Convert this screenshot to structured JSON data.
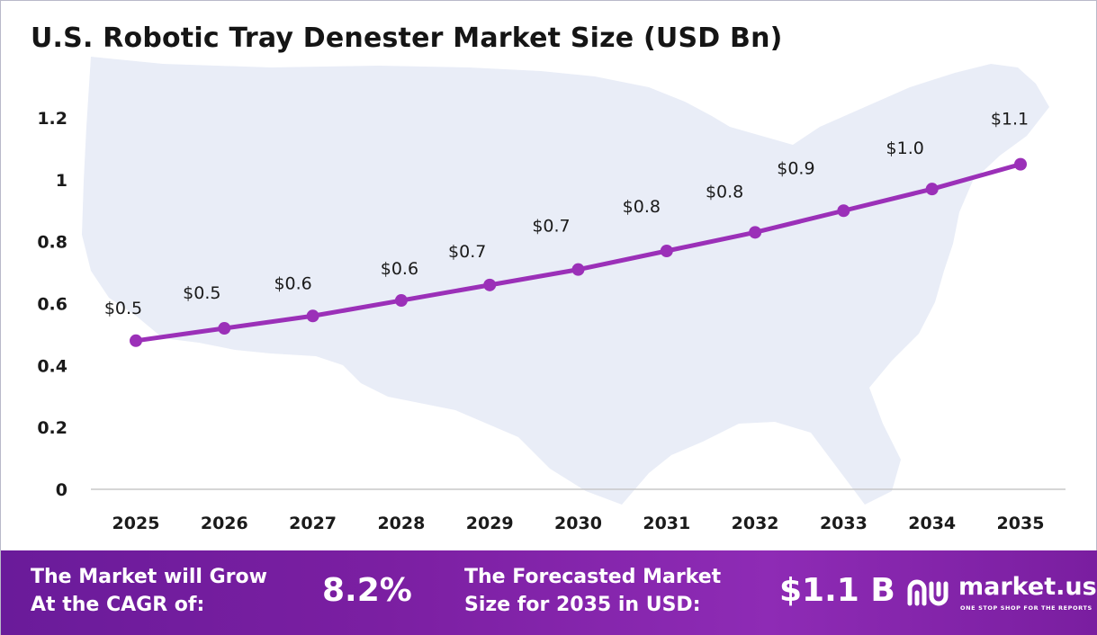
{
  "title": "U.S. Robotic Tray Denester Market Size (USD Bn)",
  "colors": {
    "line": "#9b30b8",
    "marker": "#9b30b8",
    "map": "#e9edf7",
    "axis": "#c8c8c8",
    "footer": "#7b1fa2"
  },
  "chart_data": {
    "type": "line",
    "title": "U.S. Robotic Tray Denester Market Size (USD Bn)",
    "xlabel": "",
    "ylabel": "",
    "categories": [
      "2025",
      "2026",
      "2027",
      "2028",
      "2029",
      "2030",
      "2031",
      "2032",
      "2033",
      "2034",
      "2035"
    ],
    "values": [
      0.48,
      0.52,
      0.56,
      0.61,
      0.66,
      0.71,
      0.77,
      0.83,
      0.9,
      0.97,
      1.05
    ],
    "data_labels": [
      "$0.5",
      "$0.5",
      "$0.6",
      "$0.6",
      "$0.7",
      "$0.7",
      "$0.8",
      "$0.8",
      "$0.9",
      "$1.0",
      "$1.1"
    ],
    "ylim": [
      0,
      1.2
    ],
    "yticks": [
      "0",
      "0.2",
      "0.4",
      "0.6",
      "0.8",
      "1",
      "1.2"
    ],
    "grid": false,
    "legend": "none"
  },
  "footer": {
    "cagr_label_line1": "The Market will Grow",
    "cagr_label_line2": "At the CAGR of:",
    "cagr_value": "8.2%",
    "forecast_label_line1": "The Forecasted Market",
    "forecast_label_line2": "Size for 2035 in USD:",
    "forecast_value": "$1.1 B"
  },
  "logo": {
    "name": "market.us",
    "tagline": "ONE STOP SHOP FOR THE REPORTS",
    "icon": "market-us-logo-icon"
  }
}
